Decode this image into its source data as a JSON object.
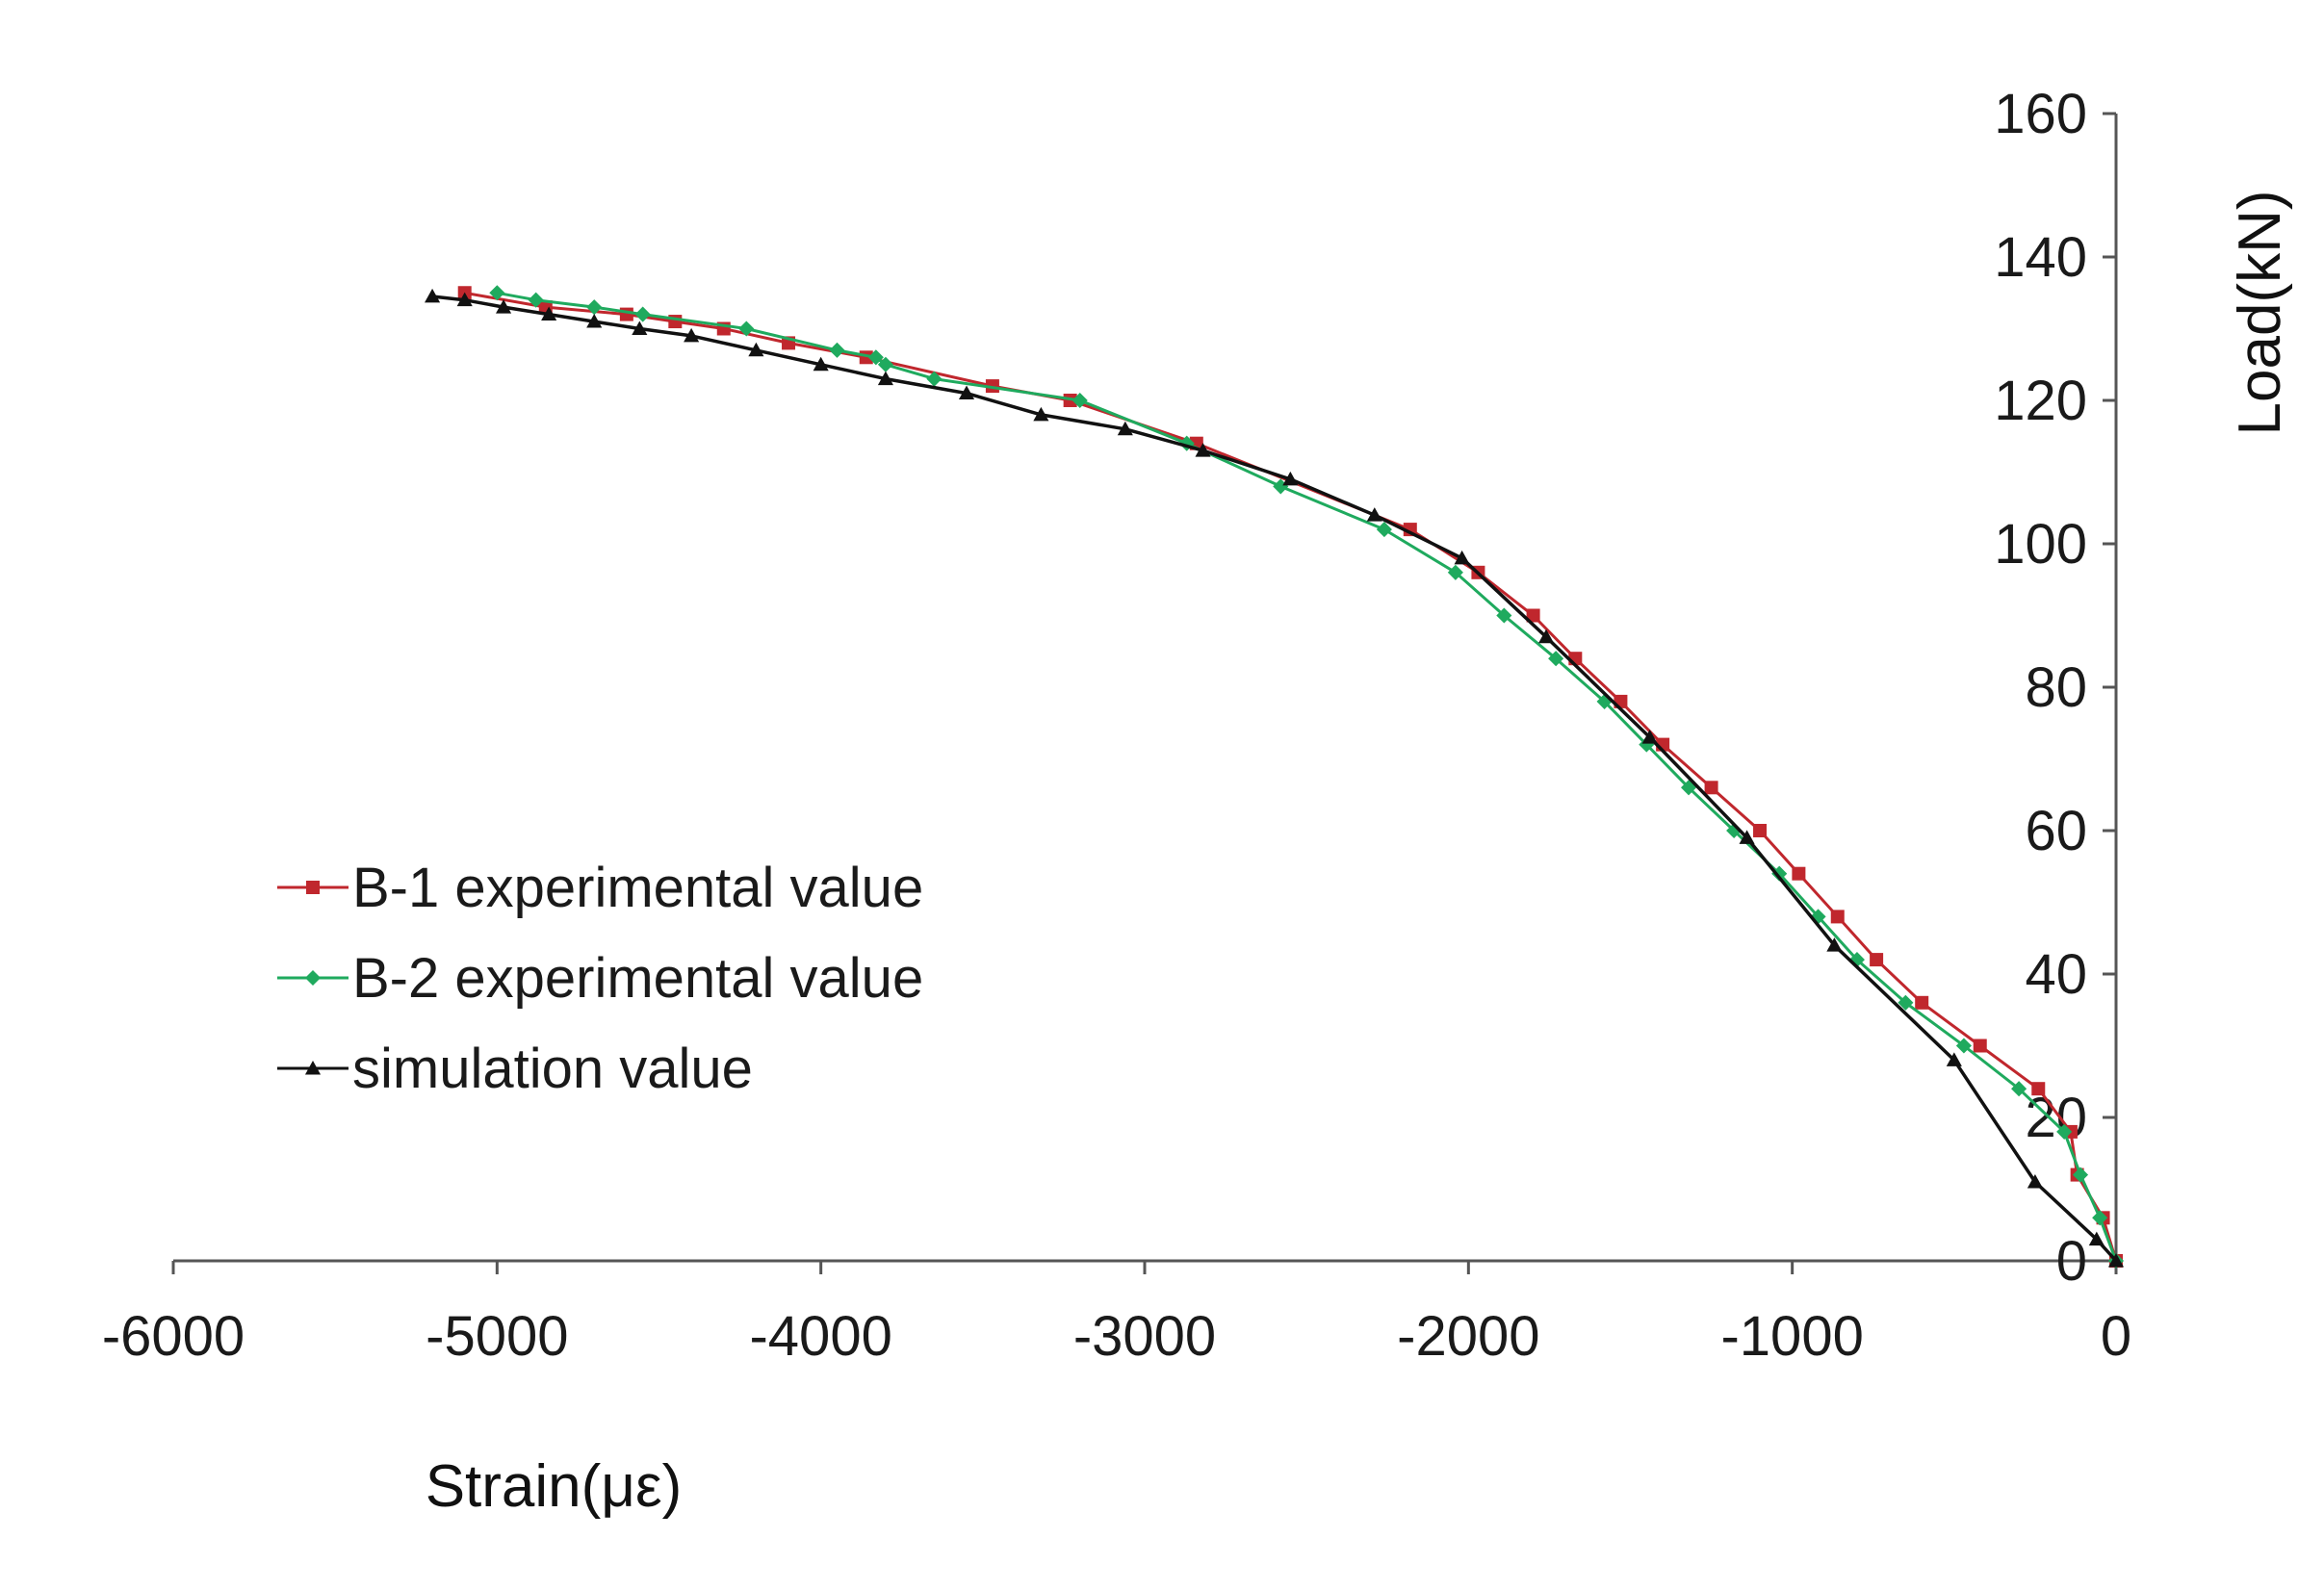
{
  "chart_data": {
    "type": "line",
    "title": "",
    "xlabel": "Strain(με)",
    "ylabel": "Load(kN)",
    "xlim": [
      -6000,
      0
    ],
    "ylim": [
      0,
      160
    ],
    "xticks": [
      "-6000",
      "-5000",
      "-4000",
      "-3000",
      "-2000",
      "-1000",
      "0"
    ],
    "yticks": [
      "0",
      "20",
      "40",
      "60",
      "80",
      "100",
      "120",
      "140",
      "160"
    ],
    "grid": false,
    "legend_position": "left-middle",
    "series": [
      {
        "name": "B-1 experimental value",
        "color": "#c0272d",
        "marker": "square",
        "x": [
          0,
          -40,
          -120,
          -140,
          -240,
          -420,
          -600,
          -740,
          -860,
          -980,
          -1100,
          -1250,
          -1400,
          -1530,
          -1670,
          -1800,
          -1970,
          -2180,
          -2840,
          -3230,
          -3470,
          -3860,
          -4100,
          -4300,
          -4450,
          -4600,
          -4850,
          -5100
        ],
        "y": [
          0,
          6,
          12,
          18,
          24,
          30,
          36,
          42,
          48,
          54,
          60,
          66,
          72,
          78,
          84,
          90,
          96,
          102,
          114,
          120,
          122,
          126,
          128,
          130,
          131,
          132,
          133,
          135
        ]
      },
      {
        "name": "B-2 experimental value",
        "color": "#1faa5e",
        "marker": "diamond",
        "x": [
          0,
          -50,
          -110,
          -160,
          -300,
          -470,
          -650,
          -800,
          -920,
          -1040,
          -1180,
          -1320,
          -1450,
          -1580,
          -1730,
          -1890,
          -2040,
          -2260,
          -2580,
          -2870,
          -3200,
          -3650,
          -3800,
          -3830,
          -3950,
          -4230,
          -4550,
          -4700,
          -4880,
          -5000
        ],
        "y": [
          0,
          6,
          12,
          18,
          24,
          30,
          36,
          42,
          48,
          54,
          60,
          66,
          72,
          78,
          84,
          90,
          96,
          102,
          108,
          114,
          120,
          123,
          125,
          126,
          127,
          130,
          132,
          133,
          134,
          135
        ]
      },
      {
        "name": "simulation value",
        "color": "#111111",
        "marker": "triangle",
        "x": [
          0,
          -60,
          -250,
          -500,
          -870,
          -1140,
          -1440,
          -1760,
          -2020,
          -2290,
          -2550,
          -2820,
          -3060,
          -3320,
          -3550,
          -3800,
          -4000,
          -4200,
          -4400,
          -4560,
          -4700,
          -4840,
          -4980,
          -5100,
          -5200
        ],
        "y": [
          0,
          3,
          11,
          28,
          44,
          59,
          73,
          87,
          98,
          104,
          109,
          113,
          116,
          118,
          121,
          123,
          125,
          127,
          129,
          130,
          131,
          132,
          133,
          134,
          134.5
        ]
      }
    ]
  }
}
